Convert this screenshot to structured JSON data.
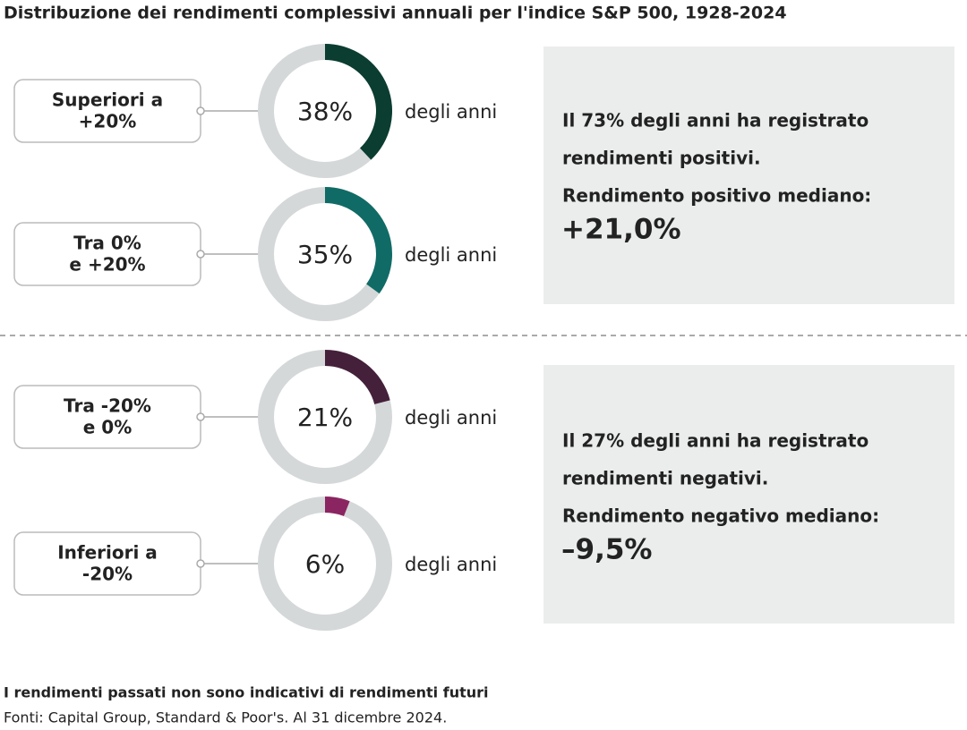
{
  "title": "Distribuzione dei rendimenti complessivi annuali per l'indice S&P 500, 1928-2024",
  "chart_data": [
    {
      "type": "pie",
      "label": [
        "Superiori a",
        "+20%"
      ],
      "values": [
        38
      ],
      "value_labels": [
        "38%"
      ],
      "color": "#0b3d31",
      "caption": "degli anni"
    },
    {
      "type": "pie",
      "label": [
        "Tra 0%",
        "e +20%"
      ],
      "values": [
        35
      ],
      "value_labels": [
        "35%"
      ],
      "color": "#106b66",
      "caption": "degli anni"
    },
    {
      "type": "pie",
      "label": [
        "Tra -20%",
        "e 0%"
      ],
      "values": [
        21
      ],
      "value_labels": [
        "21%"
      ],
      "color": "#45203a",
      "caption": "degli anni"
    },
    {
      "type": "pie",
      "label": [
        "Inferiori a",
        "-20%"
      ],
      "values": [
        6
      ],
      "value_labels": [
        "6%"
      ],
      "color": "#8b2561",
      "caption": "degli anni"
    }
  ],
  "panels": [
    {
      "lines": [
        "Il 73% degli anni ha registrato",
        "rendimenti positivi.",
        "Rendimento positivo mediano:"
      ],
      "highlight": "+21,0%",
      "highlight_color": "#106b66"
    },
    {
      "lines": [
        "Il 27% degli anni ha registrato",
        "rendimenti negativi.",
        "Rendimento negativo mediano:"
      ],
      "highlight": "–9,5%",
      "highlight_color": "#8b2561"
    }
  ],
  "footnote": {
    "bold": "I rendimenti passati non sono indicativi di rendimenti futuri",
    "sources": "Fonti: Capital Group, Standard & Poor's. Al 31 dicembre 2024."
  }
}
